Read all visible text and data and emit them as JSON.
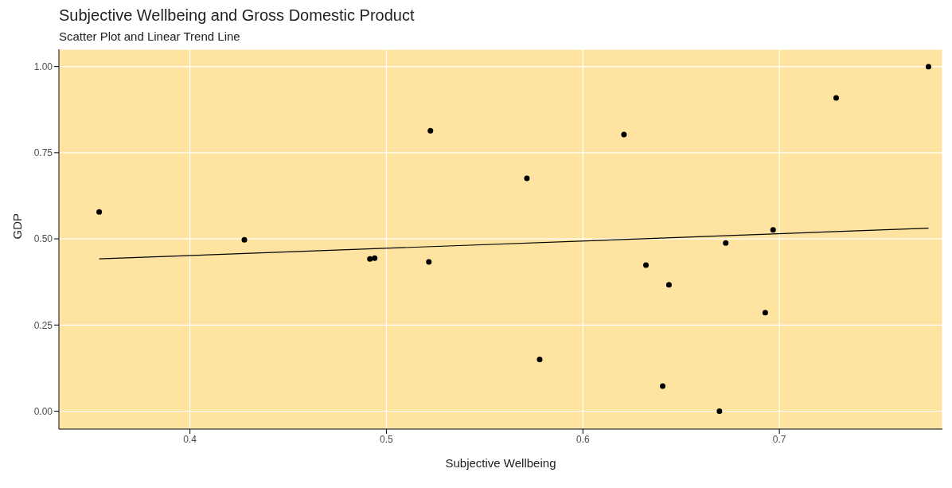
{
  "chart_data": {
    "type": "scatter",
    "title": "Subjective Wellbeing and Gross Domestic Product",
    "subtitle": "Scatter Plot and Linear Trend Line",
    "xlabel": "Subjective Wellbeing",
    "ylabel": "GDP",
    "xlim": [
      0.3333,
      0.783
    ],
    "xticks": [
      0.4,
      0.5,
      0.6,
      0.7
    ],
    "ylim": [
      -0.052,
      1.05
    ],
    "yticks": [
      {
        "value": 0,
        "label": "0.00"
      },
      {
        "value": 0.25,
        "label": "0.25"
      },
      {
        "value": 0.5,
        "label": "0.50"
      },
      {
        "value": 0.75,
        "label": "0.75"
      },
      {
        "value": 1,
        "label": "1.00"
      }
    ],
    "grid": true,
    "series": [
      {
        "color": "#000000",
        "marker": "circle",
        "x": [
          0.3538,
          0.4277,
          0.4916,
          0.494,
          0.5216,
          0.5224,
          0.5715,
          0.578,
          0.6209,
          0.6321,
          0.6438,
          0.6406,
          0.6695,
          0.6727,
          0.6928,
          0.6968,
          0.7289,
          0.7759
        ],
        "values": [
          0.578,
          0.497,
          0.442,
          0.444,
          0.433,
          0.814,
          0.676,
          0.15,
          0.803,
          0.424,
          0.367,
          0.073,
          0.0,
          0.488,
          0.286,
          0.526,
          0.909,
          1.0
        ]
      },
      {
        "type": "line",
        "marker": "none",
        "color": "#000000",
        "x": [
          0.3538,
          0.7759
        ],
        "values": [
          0.442,
          0.531
        ]
      }
    ]
  }
}
